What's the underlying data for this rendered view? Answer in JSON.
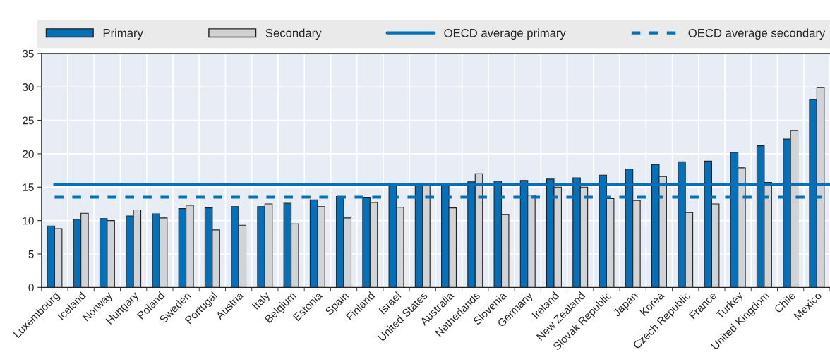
{
  "chart_data": {
    "type": "bar",
    "categories": [
      "Luxembourg",
      "Iceland",
      "Norway",
      "Hungary",
      "Poland",
      "Sweden",
      "Portugal",
      "Austria",
      "Italy",
      "Belgium",
      "Estonia",
      "Spain",
      "Finland",
      "Israel",
      "United States",
      "Australia",
      "Netherlands",
      "Slovenia",
      "Germany",
      "Ireland",
      "New Zealand",
      "Slovak Republic",
      "Japan",
      "Korea",
      "Czech Republic",
      "France",
      "Turkey",
      "United Kingdom",
      "Chile",
      "Mexico"
    ],
    "series": [
      {
        "name": "Primary",
        "color": "#0570b8",
        "values": [
          9.2,
          10.2,
          10.3,
          10.7,
          11.0,
          11.8,
          11.9,
          12.1,
          12.1,
          12.6,
          13.1,
          13.6,
          13.5,
          15.3,
          15.4,
          15.5,
          15.8,
          15.9,
          16.0,
          16.2,
          16.4,
          16.8,
          17.7,
          18.4,
          18.8,
          18.9,
          20.2,
          21.2,
          22.2,
          28.1
        ]
      },
      {
        "name": "Secondary",
        "color": "#d2d3d5",
        "values": [
          8.8,
          11.1,
          10.0,
          11.6,
          10.4,
          12.3,
          8.6,
          9.3,
          12.5,
          9.5,
          12.1,
          10.4,
          12.7,
          12.0,
          15.4,
          11.9,
          17.0,
          10.9,
          13.8,
          15.0,
          15.0,
          13.3,
          13.0,
          16.6,
          11.2,
          12.5,
          17.9,
          15.7,
          23.5,
          29.9
        ]
      }
    ],
    "ref_lines": [
      {
        "axis": "y",
        "value": 15.4,
        "label": "OECD average primary",
        "color": "#0570b8",
        "line_style": "solid"
      },
      {
        "axis": "y",
        "value": 13.5,
        "label": "OECD average secondary",
        "color": "#0570b8",
        "line_style": "dashed"
      }
    ],
    "ylim": [
      0,
      35
    ],
    "yticks": [
      0,
      5,
      10,
      15,
      20,
      25,
      30,
      35
    ],
    "grid": true,
    "legend": "top"
  }
}
